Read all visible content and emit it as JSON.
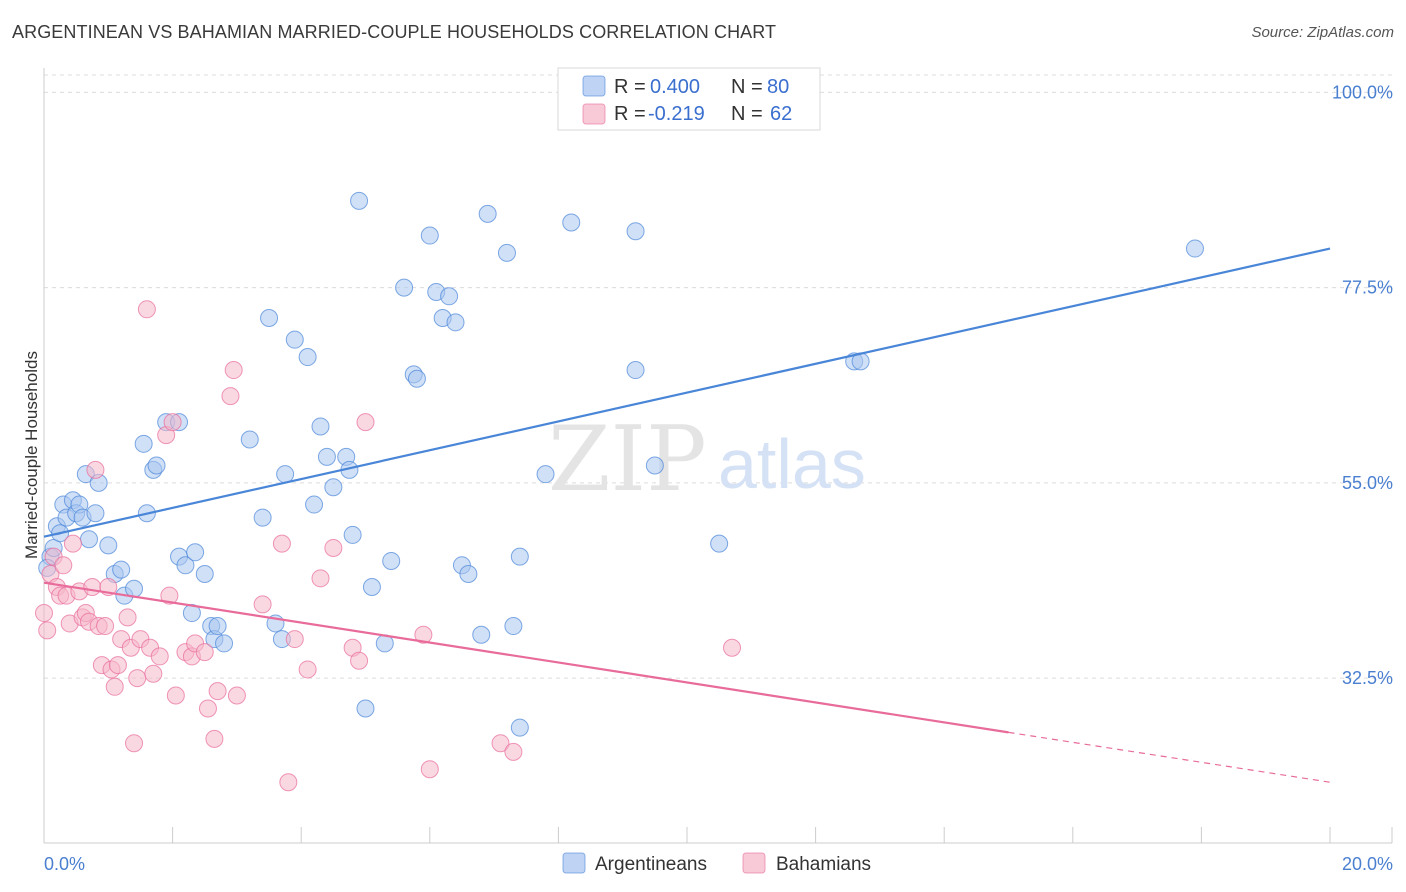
{
  "title": "ARGENTINEAN VS BAHAMIAN MARRIED-COUPLE HOUSEHOLDS CORRELATION CHART",
  "source": "Source: ZipAtlas.com",
  "watermark": {
    "zip": "ZIP",
    "atlas": "atlas"
  },
  "legend": {
    "rows": [
      {
        "r_label": "R = ",
        "r_value": "0.400",
        "n_label": "N = ",
        "n_value": "80",
        "color": "#a9c6f0"
      },
      {
        "r_label": "R = ",
        "r_value": "-0.219",
        "n_label": "N = ",
        "n_value": "62",
        "color": "#f6b8cb"
      }
    ]
  },
  "bottom_legend": [
    {
      "label": "Argentineans",
      "color": "#a9c6f0"
    },
    {
      "label": "Bahamians",
      "color": "#f6b8cb"
    }
  ],
  "chart_data": {
    "type": "scatter",
    "title": "ARGENTINEAN VS BAHAMIAN MARRIED-COUPLE HOUSEHOLDS CORRELATION CHART",
    "xlabel": "",
    "ylabel": "Married-couple Households",
    "xlim": [
      0,
      20
    ],
    "ylim": [
      13.5,
      102
    ],
    "x_tick_labels": [
      "0.0%",
      "20.0%"
    ],
    "y_ticks": [
      32.5,
      55.0,
      77.5,
      100.0
    ],
    "y_tick_labels": [
      "32.5%",
      "55.0%",
      "77.5%",
      "100.0%"
    ],
    "grid": true,
    "series": [
      {
        "name": "Argentineans",
        "color": "#4a86d8",
        "fill": "#a9c6f0",
        "trend": {
          "x0": 0,
          "y0": 48.8,
          "x1": 20,
          "y1": 82.0,
          "dashed_from": null
        },
        "points": [
          [
            0.1,
            46.5
          ],
          [
            0.15,
            47.5
          ],
          [
            0.2,
            50.0
          ],
          [
            0.25,
            49.2
          ],
          [
            0.3,
            52.5
          ],
          [
            0.35,
            51.0
          ],
          [
            0.45,
            53.0
          ],
          [
            0.5,
            51.5
          ],
          [
            0.55,
            52.5
          ],
          [
            0.6,
            51.0
          ],
          [
            0.65,
            56.0
          ],
          [
            0.7,
            48.5
          ],
          [
            0.8,
            51.5
          ],
          [
            0.85,
            55.0
          ],
          [
            1.0,
            47.8
          ],
          [
            1.1,
            44.5
          ],
          [
            1.2,
            45.0
          ],
          [
            1.25,
            42.0
          ],
          [
            1.4,
            42.8
          ],
          [
            1.55,
            59.5
          ],
          [
            1.6,
            51.5
          ],
          [
            1.7,
            56.5
          ],
          [
            1.75,
            57.0
          ],
          [
            1.9,
            62.0
          ],
          [
            2.1,
            62.0
          ],
          [
            2.1,
            46.5
          ],
          [
            2.2,
            45.5
          ],
          [
            2.3,
            40.0
          ],
          [
            2.35,
            47.0
          ],
          [
            2.5,
            44.5
          ],
          [
            2.6,
            38.5
          ],
          [
            2.65,
            37.0
          ],
          [
            2.7,
            38.5
          ],
          [
            2.8,
            36.5
          ],
          [
            3.2,
            60.0
          ],
          [
            3.4,
            51.0
          ],
          [
            3.5,
            74.0
          ],
          [
            3.6,
            38.8
          ],
          [
            3.7,
            37.0
          ],
          [
            3.75,
            56.0
          ],
          [
            3.9,
            71.5
          ],
          [
            4.1,
            69.5
          ],
          [
            4.2,
            52.5
          ],
          [
            4.3,
            61.5
          ],
          [
            4.4,
            58.0
          ],
          [
            4.5,
            54.5
          ],
          [
            4.7,
            58.0
          ],
          [
            4.75,
            56.5
          ],
          [
            4.8,
            49.0
          ],
          [
            4.9,
            87.5
          ],
          [
            5.0,
            29.0
          ],
          [
            5.1,
            43.0
          ],
          [
            5.3,
            36.5
          ],
          [
            5.4,
            46.0
          ],
          [
            5.6,
            77.5
          ],
          [
            5.75,
            67.5
          ],
          [
            5.8,
            67.0
          ],
          [
            6.0,
            83.5
          ],
          [
            6.1,
            77.0
          ],
          [
            6.2,
            74.0
          ],
          [
            6.3,
            76.5
          ],
          [
            6.4,
            73.5
          ],
          [
            6.5,
            45.5
          ],
          [
            6.6,
            44.5
          ],
          [
            6.8,
            37.5
          ],
          [
            6.9,
            86.0
          ],
          [
            7.2,
            81.5
          ],
          [
            7.4,
            46.5
          ],
          [
            7.3,
            38.5
          ],
          [
            7.4,
            26.8
          ],
          [
            7.8,
            56.0
          ],
          [
            8.2,
            85.0
          ],
          [
            9.2,
            68.0
          ],
          [
            9.2,
            84.0
          ],
          [
            9.5,
            57.0
          ],
          [
            10.5,
            48.0
          ],
          [
            12.6,
            69.0
          ],
          [
            12.7,
            69.0
          ],
          [
            17.9,
            82.0
          ],
          [
            0.05,
            45.2
          ]
        ]
      },
      {
        "name": "Bahamians",
        "color": "#e86b9a",
        "fill": "#f6b8cb",
        "trend": {
          "x0": 0,
          "y0": 43.5,
          "x1": 20,
          "y1": 20.5,
          "dashed_from": 15.0
        },
        "points": [
          [
            0.0,
            40.0
          ],
          [
            0.1,
            44.5
          ],
          [
            0.15,
            46.5
          ],
          [
            0.2,
            43.0
          ],
          [
            0.25,
            42.0
          ],
          [
            0.3,
            45.5
          ],
          [
            0.35,
            42.0
          ],
          [
            0.4,
            38.8
          ],
          [
            0.45,
            48.0
          ],
          [
            0.55,
            42.5
          ],
          [
            0.6,
            39.5
          ],
          [
            0.65,
            40.0
          ],
          [
            0.7,
            39.0
          ],
          [
            0.75,
            43.0
          ],
          [
            0.8,
            56.5
          ],
          [
            0.85,
            38.5
          ],
          [
            0.9,
            34.0
          ],
          [
            0.95,
            38.5
          ],
          [
            1.0,
            43.0
          ],
          [
            1.05,
            33.5
          ],
          [
            1.1,
            31.5
          ],
          [
            1.15,
            34.0
          ],
          [
            1.2,
            37.0
          ],
          [
            1.3,
            39.5
          ],
          [
            1.35,
            36.0
          ],
          [
            1.4,
            25.0
          ],
          [
            1.45,
            32.5
          ],
          [
            1.5,
            37.0
          ],
          [
            1.6,
            75.0
          ],
          [
            1.65,
            36.0
          ],
          [
            1.7,
            33.0
          ],
          [
            1.8,
            35.0
          ],
          [
            1.9,
            60.5
          ],
          [
            1.95,
            42.0
          ],
          [
            2.0,
            62.0
          ],
          [
            2.05,
            30.5
          ],
          [
            2.2,
            35.5
          ],
          [
            2.3,
            35.0
          ],
          [
            2.35,
            36.5
          ],
          [
            2.5,
            35.5
          ],
          [
            2.55,
            29.0
          ],
          [
            2.65,
            25.5
          ],
          [
            2.7,
            31.0
          ],
          [
            2.9,
            65.0
          ],
          [
            2.95,
            68.0
          ],
          [
            3.0,
            30.5
          ],
          [
            3.4,
            41.0
          ],
          [
            3.7,
            48.0
          ],
          [
            3.8,
            20.5
          ],
          [
            3.9,
            37.0
          ],
          [
            4.1,
            33.5
          ],
          [
            4.3,
            44.0
          ],
          [
            4.5,
            47.5
          ],
          [
            4.8,
            36.0
          ],
          [
            4.9,
            34.5
          ],
          [
            5.0,
            62.0
          ],
          [
            5.9,
            37.5
          ],
          [
            6.0,
            22.0
          ],
          [
            7.1,
            25.0
          ],
          [
            7.3,
            24.0
          ],
          [
            10.7,
            36.0
          ],
          [
            0.05,
            38.0
          ]
        ]
      }
    ]
  }
}
